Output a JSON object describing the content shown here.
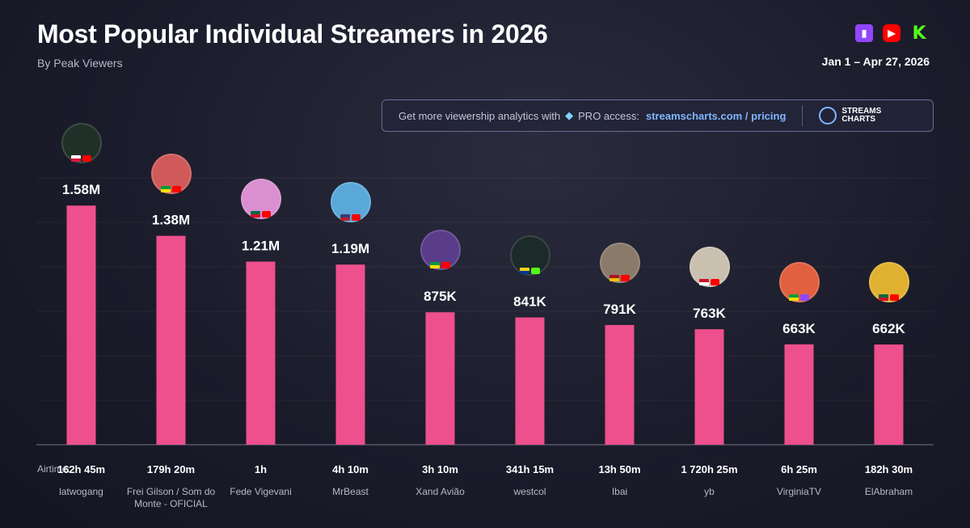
{
  "header": {
    "title": "Most Popular Individual Streamers in 2026",
    "subtitle": "By Peak Viewers",
    "date_range": "Jan 1 – Apr 27, 2026",
    "platform_icons": [
      "twitch-icon",
      "youtube-icon",
      "kick-icon"
    ]
  },
  "promo": {
    "text": "Get more viewership analytics with",
    "gem_icon": "diamond-icon",
    "pro_text": "PRO access:",
    "link": "streamscharts.com / pricing",
    "logo_line1": "STREAMS",
    "logo_line2": "CHARTS"
  },
  "airtime_label": "Airtime:",
  "colors": {
    "bar": "#ee4f8d",
    "twitch": "#9146ff",
    "youtube": "#ff0000",
    "kick": "#53fc18"
  },
  "chart_data": {
    "type": "bar",
    "title": "Most Popular Individual Streamers in 2026",
    "subtitle": "By Peak Viewers",
    "categories": [
      "latwogang",
      "Frei Gilson / Som do Monte - OFICIAL",
      "Fede Vigevani",
      "MrBeast",
      "Xand Avião",
      "westcol",
      "Ibai",
      "yb",
      "VirginiaTV",
      "ElAbraham"
    ],
    "values": [
      1580000,
      1380000,
      1210000,
      1190000,
      875000,
      841000,
      791000,
      763000,
      663000,
      662000
    ],
    "value_labels": [
      "1.58M",
      "1.38M",
      "1.21M",
      "1.19M",
      "875K",
      "841K",
      "791K",
      "763K",
      "663K",
      "662K"
    ],
    "airtime": [
      "162h 45m",
      "179h 20m",
      "1h",
      "4h 10m",
      "3h 10m",
      "341h 15m",
      "13h 50m",
      "1 720h 25m",
      "6h 25m",
      "182h 30m"
    ],
    "countries": [
      "pl",
      "br",
      "mx",
      "us",
      "br",
      "co",
      "es",
      "id",
      "br",
      "mx"
    ],
    "platforms": [
      "youtube",
      "youtube",
      "youtube",
      "youtube",
      "youtube",
      "kick",
      "youtube",
      "youtube",
      "twitch",
      "youtube"
    ],
    "ylim": [
      0,
      1800000
    ],
    "grid": true,
    "xlabel": "",
    "ylabel": ""
  }
}
